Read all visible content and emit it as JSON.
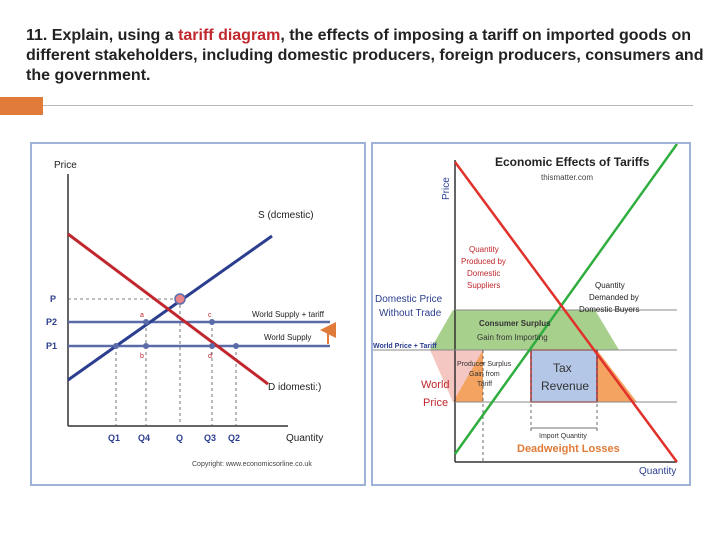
{
  "slide": {
    "title_pre": "11. Explain, using a ",
    "title_highlight": "tariff diagram",
    "title_post": ", the effects of imposing a tariff on imported goods on different stakeholders, including domestic producers, foreign producers, consumers and the government.",
    "accent_color": "#e07b39",
    "highlight_color": "#c0282d"
  },
  "left_diagram": {
    "y_axis_label": "Price",
    "x_axis_label": "Quantity",
    "supply_label": "S (dcmestic)",
    "demand_label": "D idomesti:)",
    "world_supply_tariff_label": "World Supply + tariff",
    "world_supply_label": "World Supply",
    "price_ticks": [
      "P",
      "P2",
      "P1"
    ],
    "quantity_ticks": [
      "Q1",
      "Q4",
      "Q",
      "Q3",
      "Q2"
    ],
    "point_labels": [
      "a",
      "b",
      "c",
      "d"
    ],
    "copyright": "Copyright: www.economicsorline.co.uk",
    "supply_color": "#2b3e8f",
    "demand_color": "#c0282d",
    "world_supply_color": "#5b6aa8"
  },
  "right_diagram": {
    "title": "Economic Effects of Tariffs",
    "subtitle": "thismatter.com",
    "y_axis_label": "Price",
    "x_axis_label": "Quantity",
    "domestic_price_label": [
      "Domestic Price",
      "Without Trade"
    ],
    "world_price_tariff_label": "World Price + Tariff",
    "world_price_label": [
      "World",
      "Price"
    ],
    "qty_domestic_label": [
      "Quantity",
      "Produced by",
      "Domestic",
      "Suppliers"
    ],
    "qty_demanded_label": [
      "Quantity",
      "Demanded by",
      "Domestic Buyers"
    ],
    "consumer_surplus_label": [
      "Consumer Surplus",
      "Gain from Importing"
    ],
    "producer_surplus_label": [
      "Producer Surplus",
      "Gain from",
      "Tariff"
    ],
    "tax_revenue_label": [
      "Tax",
      "Revenue"
    ],
    "import_quantity_label": "Import Quantity",
    "deadweight_label": "Deadweight Losses",
    "supply_color": "#2fae3f",
    "demand_color": "#e0312a",
    "consumer_surplus_color": "#a8d08d",
    "producer_surplus_color": "#f4c7c3",
    "tax_revenue_color": "#b4c7e7",
    "deadweight_color": "#f4a460"
  }
}
